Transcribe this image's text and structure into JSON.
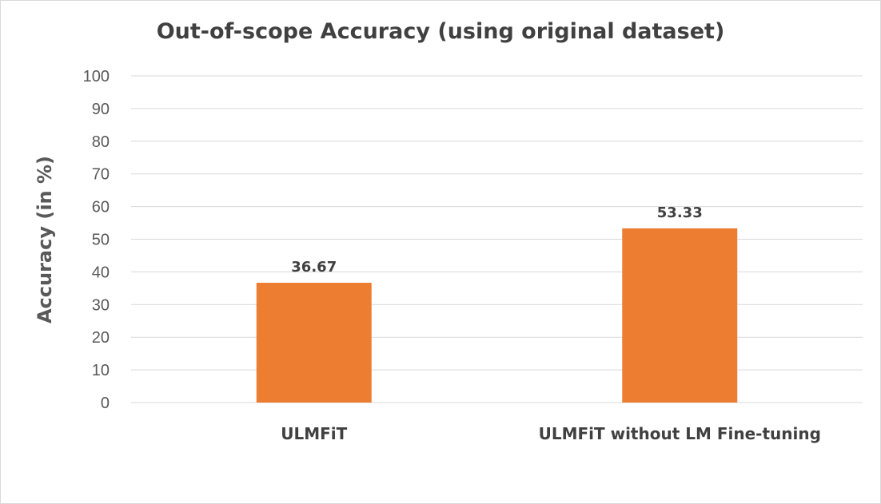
{
  "chart_data": {
    "type": "bar",
    "title": "Out-of-scope Accuracy (using original dataset)",
    "xlabel": "",
    "ylabel": "Accuracy (in %)",
    "categories": [
      "ULMFiT",
      "ULMFiT without LM Fine-tuning"
    ],
    "values": [
      36.67,
      53.33
    ],
    "data_labels": [
      "36.67",
      "53.33"
    ],
    "ylim": [
      0,
      100
    ],
    "yticks": [
      0,
      10,
      20,
      30,
      40,
      50,
      60,
      70,
      80,
      90,
      100
    ],
    "grid": true,
    "legend": "none",
    "bar_color": "#ed7d31"
  }
}
